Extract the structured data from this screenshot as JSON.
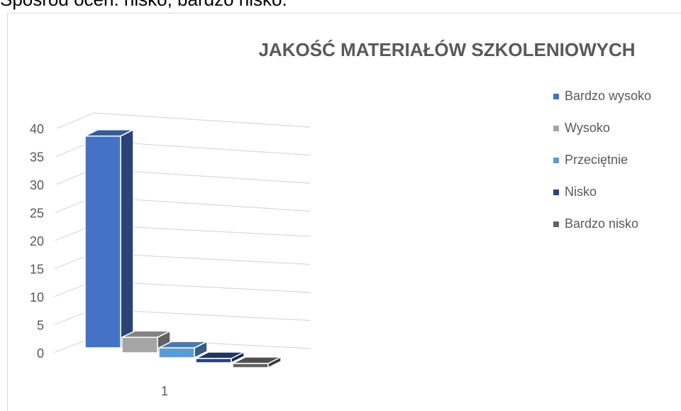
{
  "top_text": "Spośród ocen: nisko, bardzo nisko.",
  "chart_data": {
    "type": "bar3d",
    "title": "JAKOŚĆ MATERIAŁÓW SZKOLENIOWYCH",
    "categories": [
      "1"
    ],
    "series": [
      {
        "name": "Bardzo wysoko",
        "color": "#4472c4",
        "values": [
          37
        ]
      },
      {
        "name": "Wysoko",
        "color": "#a5a5a5",
        "values": [
          2
        ]
      },
      {
        "name": "Przeciętnie",
        "color": "#5b9bd5",
        "values": [
          1
        ]
      },
      {
        "name": "Nisko",
        "color": "#264478",
        "values": [
          0
        ]
      },
      {
        "name": "Bardzo nisko",
        "color": "#636363",
        "values": [
          0
        ]
      }
    ],
    "ylim": [
      0,
      40
    ],
    "yticks": [
      0,
      5,
      10,
      15,
      20,
      25,
      30,
      35,
      40
    ],
    "grid": true,
    "legend": "right"
  }
}
